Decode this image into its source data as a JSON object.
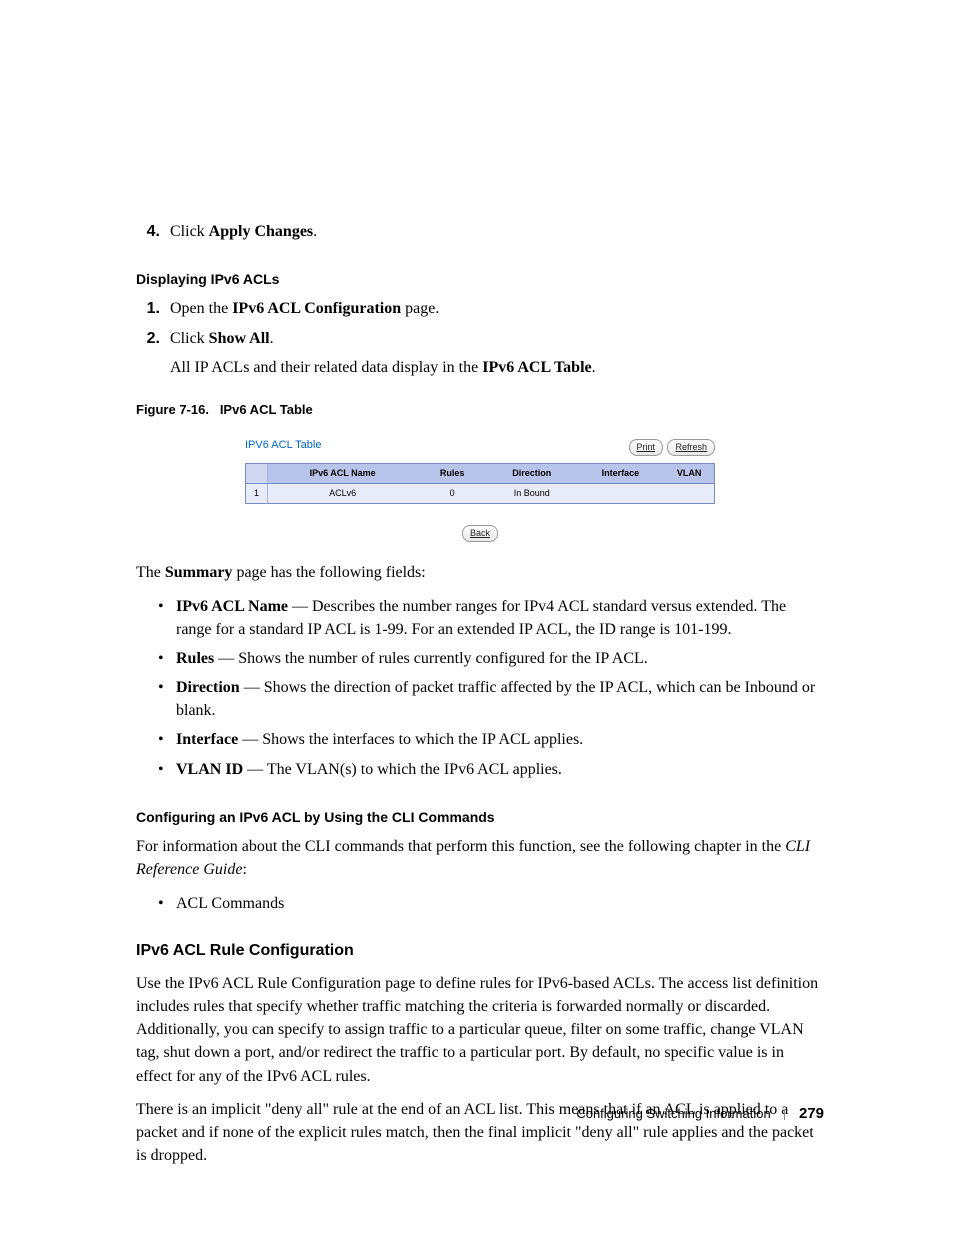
{
  "steps_top": [
    {
      "num": "4.",
      "prefix": "Click ",
      "bold": "Apply Changes",
      "suffix": "."
    }
  ],
  "section_displaying": {
    "heading": "Displaying IPv6 ACLs",
    "steps": [
      {
        "num": "1.",
        "prefix": "Open the ",
        "bold": "IPv6 ACL Configuration",
        "suffix": " page."
      },
      {
        "num": "2.",
        "prefix": "Click ",
        "bold": "Show All",
        "suffix": "."
      }
    ],
    "followup_prefix": "All IP ACLs and their related data display in the ",
    "followup_bold": "IPv6 ACL Table",
    "followup_suffix": "."
  },
  "figure": {
    "caption_label": "Figure 7-16.",
    "caption_title": "IPv6 ACL Table",
    "panel_title": "IPV6 ACL Table",
    "btn_print": "Print",
    "btn_refresh": "Refresh",
    "btn_back": "Back",
    "columns": {
      "name": "IPv6 ACL Name",
      "rules": "Rules",
      "direction": "Direction",
      "interface": "Interface",
      "vlan": "VLAN"
    },
    "row": {
      "idx": "1",
      "name": "ACLv6",
      "rules": "0",
      "direction": "In Bound",
      "interface": "",
      "vlan": ""
    },
    "colors": {
      "header_bg": "#b8c4ea",
      "row_bg": "#e8ecf9",
      "border": "#7a89c8",
      "title_color": "#0066cc"
    }
  },
  "summary_intro_prefix": "The ",
  "summary_intro_bold": "Summary",
  "summary_intro_suffix": " page has the following fields:",
  "summary_bullets": [
    {
      "term": "IPv6 ACL Name",
      "desc": " — Describes the number ranges for IPv4 ACL standard versus extended. The range for a standard IP ACL is 1-99. For an extended IP ACL, the ID range is 101-199."
    },
    {
      "term": "Rules",
      "desc": " — Shows the number of rules currently configured for the IP ACL."
    },
    {
      "term": "Direction",
      "desc": " — Shows the direction of packet traffic affected by the IP ACL, which can be Inbound or blank."
    },
    {
      "term": "Interface",
      "desc": " — Shows the interfaces to which the IP ACL applies."
    },
    {
      "term": "VLAN ID",
      "desc": " — The VLAN(s) to which the IPv6 ACL applies."
    }
  ],
  "cli_section": {
    "heading": "Configuring an IPv6 ACL by Using the CLI Commands",
    "intro_prefix": "For information about the CLI commands that perform this function, see the following chapter in the ",
    "intro_italic": "CLI Reference Guide",
    "intro_suffix": ":",
    "bullet": "ACL Commands"
  },
  "rule_section": {
    "heading": "IPv6 ACL Rule Configuration",
    "p1": "Use the IPv6 ACL Rule Configuration page to define rules for IPv6-based ACLs. The access list definition includes rules that specify whether traffic matching the criteria is forwarded normally or discarded. Additionally, you can specify to assign traffic to a particular queue, filter on some traffic, change VLAN tag, shut down a port, and/or redirect the traffic to a particular port. By default, no specific value is in effect for any of the IPv6 ACL rules.",
    "p2": "There is an implicit \"deny all\" rule at the end of an ACL list. This means that if an ACL is applied to a packet and if none of the explicit rules match, then the final implicit \"deny all\" rule applies and the packet is dropped."
  },
  "footer": {
    "section": "Configuring Switching Information",
    "page": "279"
  }
}
